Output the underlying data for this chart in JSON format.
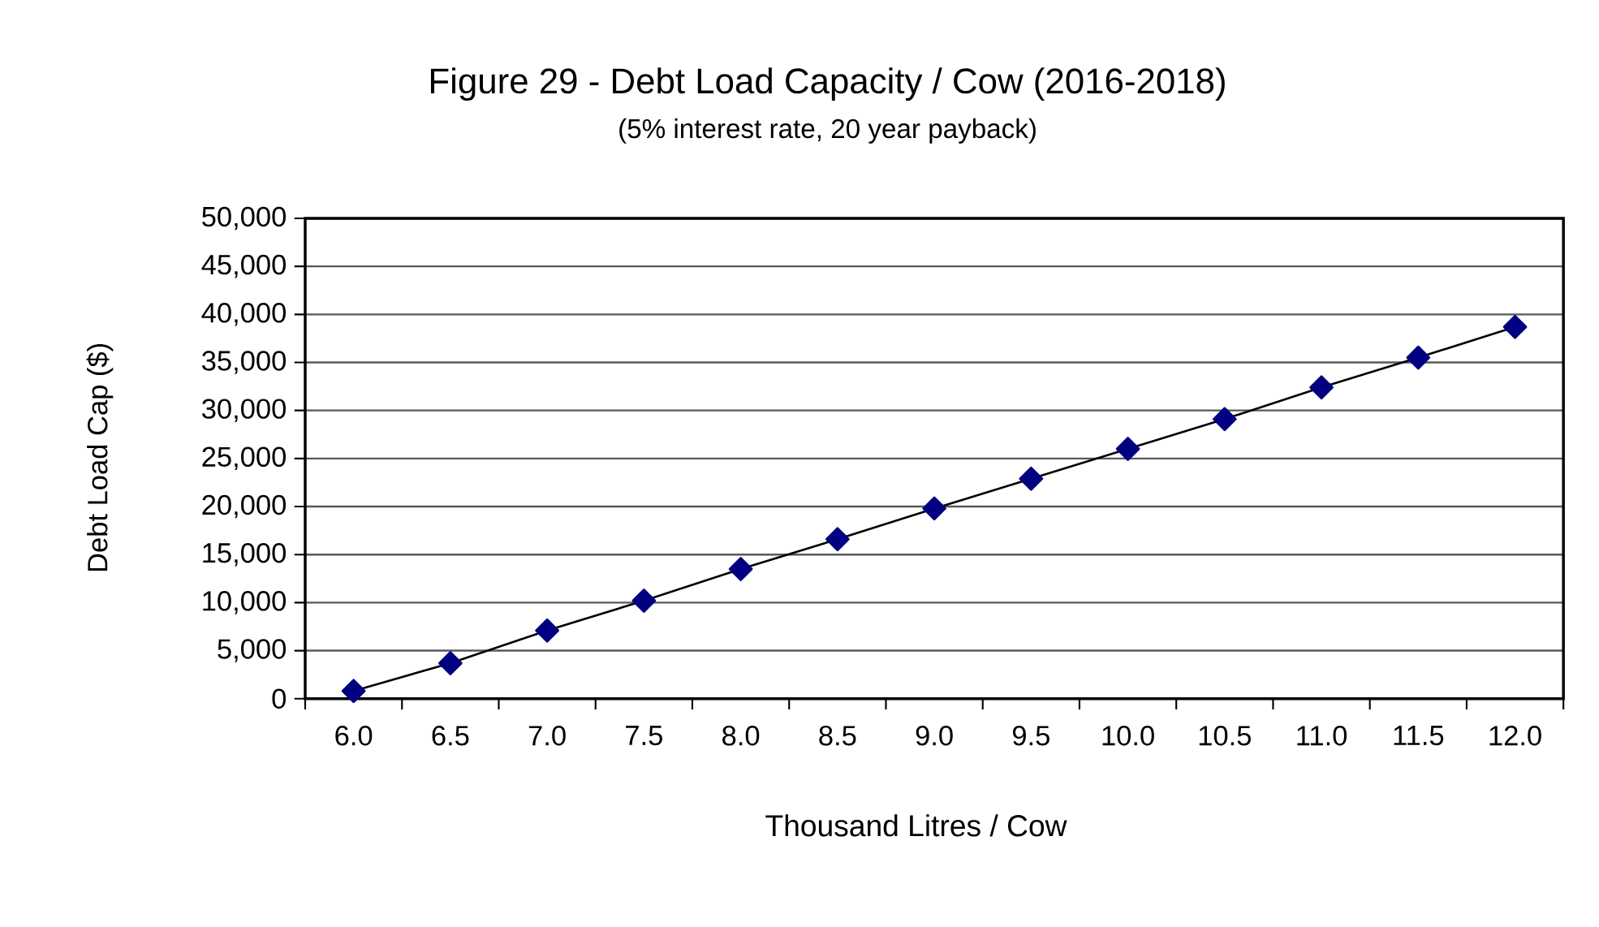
{
  "chart_data": {
    "type": "line",
    "title": "Figure 29 - Debt Load Capacity / Cow (2016-2018)",
    "subtitle": "(5% interest rate, 20 year payback)",
    "xlabel": "Thousand  Litres / Cow",
    "ylabel": "Debt Load Cap ($)",
    "categories": [
      "6.0",
      "6.5",
      "7.0",
      "7.5",
      "8.0",
      "8.5",
      "9.0",
      "9.5",
      "10.0",
      "10.5",
      "11.0",
      "11.5",
      "12.0"
    ],
    "series": [
      {
        "color": "#000080",
        "values": [
          800,
          3700,
          7100,
          10200,
          13500,
          16600,
          19800,
          22900,
          26000,
          29100,
          32400,
          35500,
          38700
        ]
      }
    ],
    "ylim": [
      0,
      50000
    ],
    "yticks": [
      0,
      {
        "value": 5000,
        "label": "5,000"
      },
      {
        "value": 10000,
        "label": "10,000"
      },
      {
        "value": 15000,
        "label": "15,000"
      },
      {
        "value": 20000,
        "label": "20,000"
      },
      {
        "value": 25000,
        "label": "25,000"
      },
      {
        "value": 30000,
        "label": "30,000"
      },
      {
        "value": 35000,
        "label": "35,000"
      },
      {
        "value": 40000,
        "label": "40,000"
      },
      {
        "value": 45000,
        "label": "45,000"
      },
      {
        "value": 50000,
        "label": "50,000"
      }
    ],
    "grid": "y",
    "marker": "diamond",
    "line_style": "solid"
  }
}
